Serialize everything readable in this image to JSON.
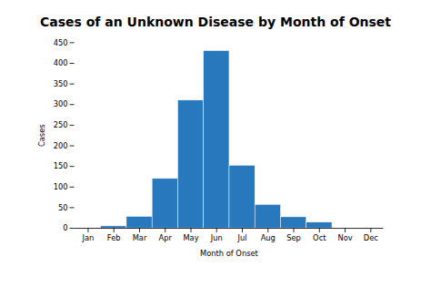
{
  "chart_data": {
    "type": "bar",
    "title": "Cases of an Unknown Disease by Month of Onset",
    "xlabel": "Month of Onset",
    "ylabel": "Cases",
    "categories": [
      "Jan",
      "Feb",
      "Mar",
      "Apr",
      "May",
      "Jun",
      "Jul",
      "Aug",
      "Sep",
      "Oct",
      "Nov",
      "Dec"
    ],
    "values": [
      0,
      5,
      28,
      120,
      310,
      430,
      152,
      57,
      27,
      14,
      0,
      0
    ],
    "color": "#2878BE",
    "ylim": [
      0,
      450
    ],
    "yticks": [
      0,
      50,
      100,
      150,
      200,
      250,
      300,
      350,
      400,
      450
    ],
    "grid": false
  }
}
